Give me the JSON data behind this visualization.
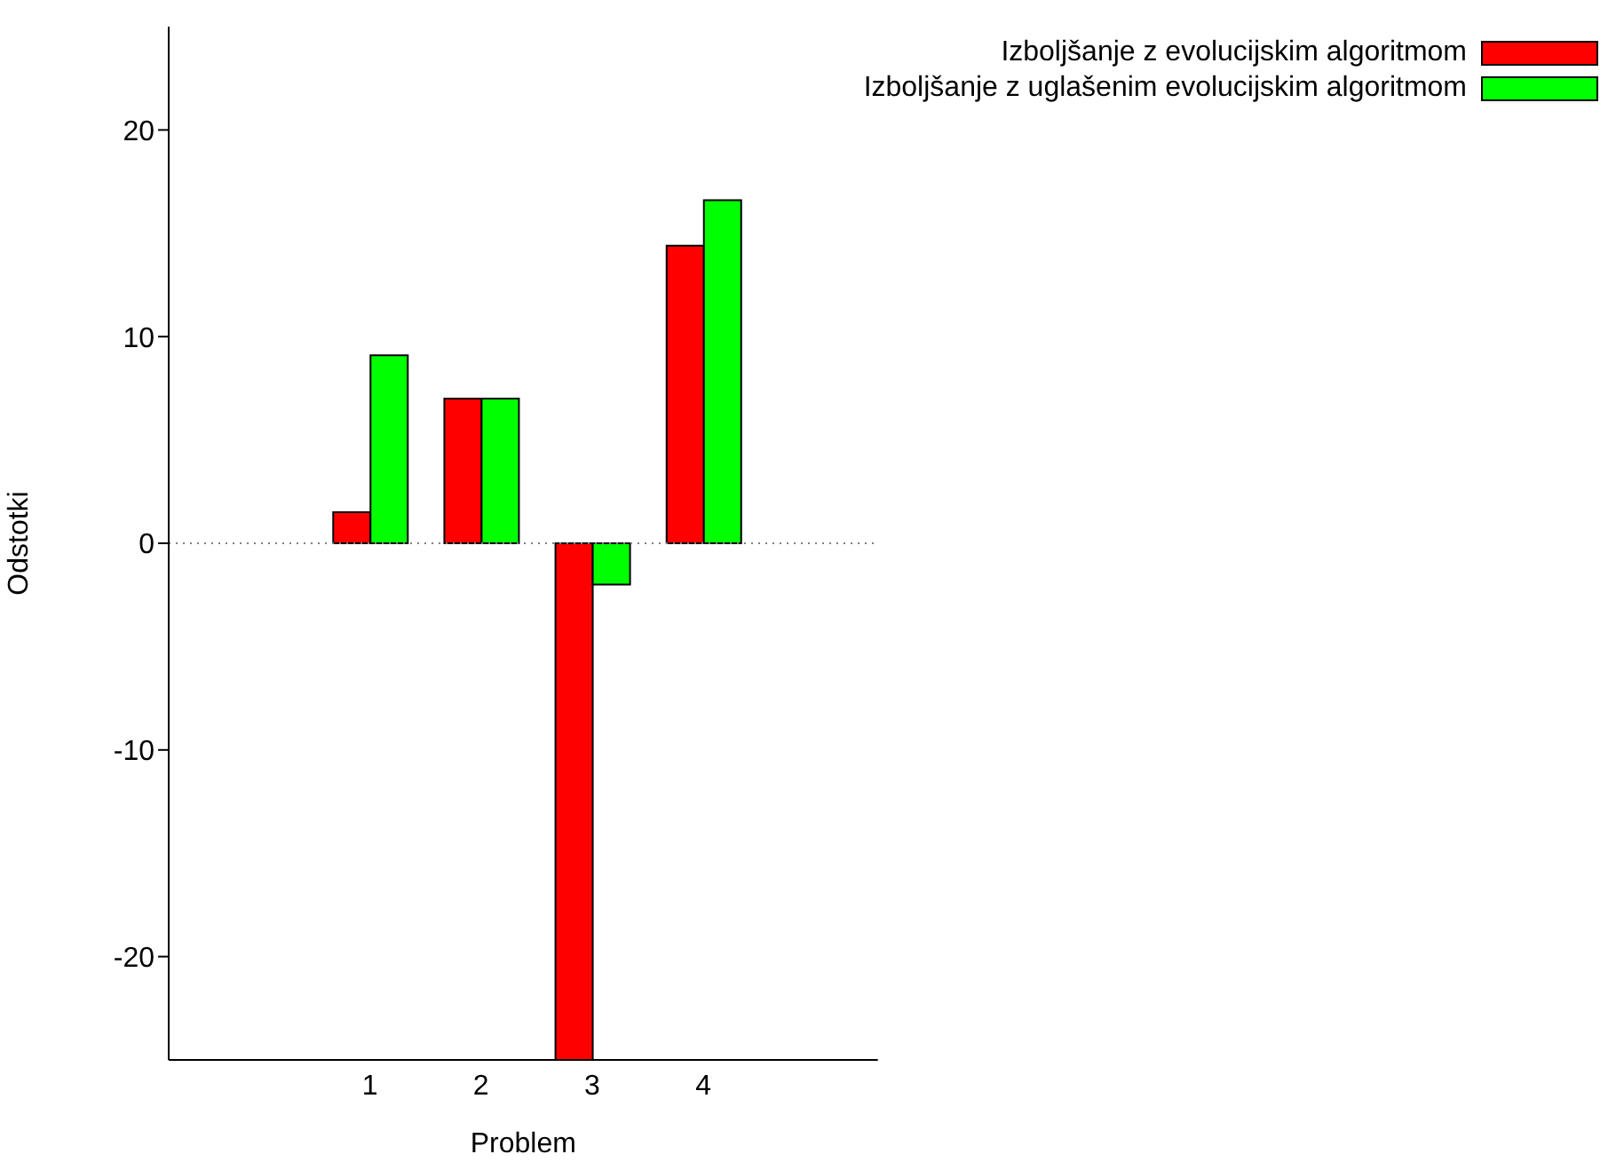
{
  "chart_data": {
    "type": "bar",
    "xlabel": "Problem",
    "ylabel": "Odstotki",
    "categories": [
      "1",
      "2",
      "3",
      "4"
    ],
    "series": [
      {
        "name": "Izboljšanje z evolucijskim algoritmom",
        "color": "#ff0000",
        "values": [
          1.5,
          7.0,
          -25,
          14.4
        ]
      },
      {
        "name": "Izboljšanje z uglašenim evolucijskim algoritmom",
        "color": "#00ff00",
        "values": [
          9.1,
          7.0,
          -2.0,
          16.6
        ]
      }
    ],
    "ylim": [
      -25,
      25
    ],
    "yticks": [
      -20,
      -10,
      0,
      10,
      20
    ],
    "ref_lines": [
      {
        "axis": "y",
        "value": 0,
        "color": "#808080",
        "line_style": "dotted"
      }
    ],
    "legend": "top right",
    "grid": false
  }
}
